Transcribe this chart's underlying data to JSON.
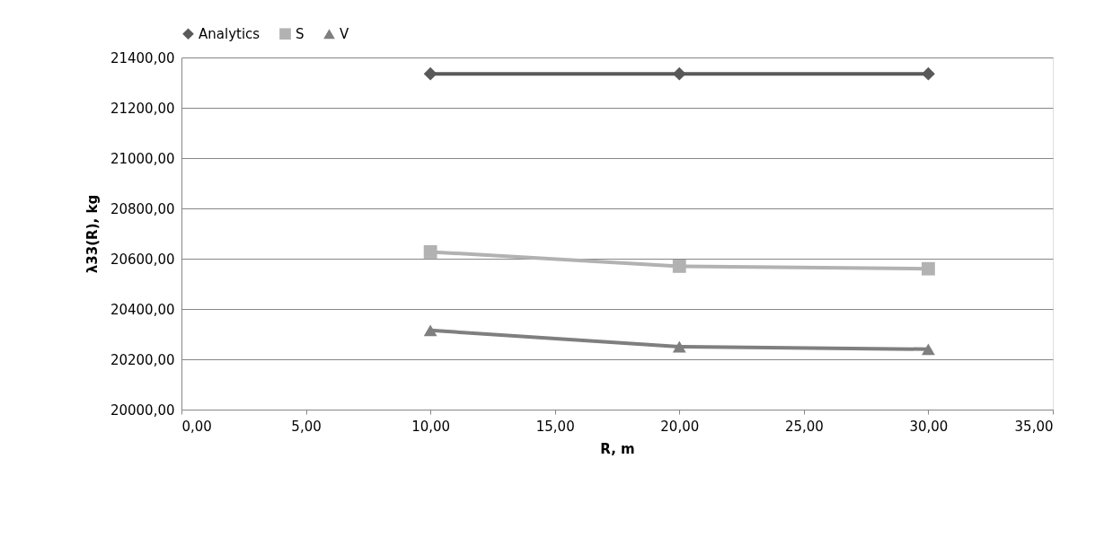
{
  "chart_data": {
    "type": "line",
    "xlabel": "R, m",
    "ylabel": "λ33(R), kg",
    "x": [
      10,
      20,
      30
    ],
    "series": [
      {
        "name": "Analytics",
        "color": "#595959",
        "marker": "diamond",
        "values": [
          21335,
          21335,
          21335
        ]
      },
      {
        "name": "S",
        "color": "#b2b2b2",
        "marker": "square",
        "values": [
          20627,
          20570,
          20560
        ]
      },
      {
        "name": "V",
        "color": "#7f7f7f",
        "marker": "triangle",
        "values": [
          20315,
          20250,
          20240
        ]
      }
    ],
    "xlim": [
      0,
      35
    ],
    "xticks": [
      {
        "value": 0,
        "label": "0,00"
      },
      {
        "value": 5,
        "label": "5,00"
      },
      {
        "value": 10,
        "label": "10,00"
      },
      {
        "value": 15,
        "label": "15,00"
      },
      {
        "value": 20,
        "label": "20,00"
      },
      {
        "value": 25,
        "label": "25,00"
      },
      {
        "value": 30,
        "label": "30,00"
      },
      {
        "value": 35,
        "label": "35,00"
      }
    ],
    "ylim": [
      20000,
      21400
    ],
    "yticks": [
      {
        "value": 20000,
        "label": "20000,00"
      },
      {
        "value": 20200,
        "label": "20200,00"
      },
      {
        "value": 20400,
        "label": "20400,00"
      },
      {
        "value": 20600,
        "label": "20600,00"
      },
      {
        "value": 20800,
        "label": "20800,00"
      },
      {
        "value": 21000,
        "label": "21000,00"
      },
      {
        "value": 21200,
        "label": "21200,00"
      },
      {
        "value": 21400,
        "label": "21400,00"
      }
    ],
    "grid": "y",
    "legend": "top",
    "line_style": "solid"
  }
}
